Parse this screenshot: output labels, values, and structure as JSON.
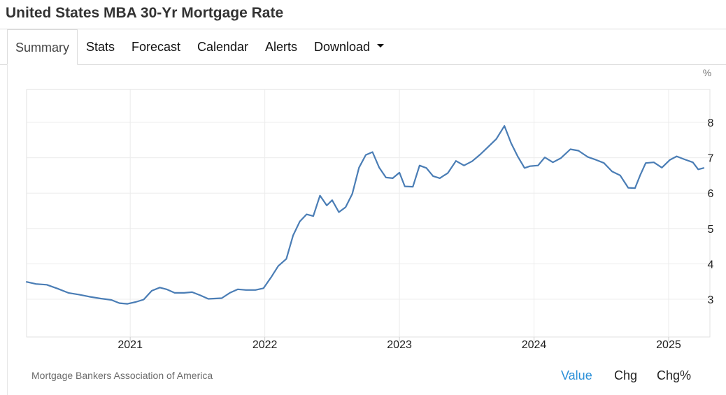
{
  "page": {
    "title": "United States MBA 30-Yr Mortgage Rate"
  },
  "tabs": [
    {
      "label": "Summary",
      "active": true
    },
    {
      "label": "Stats"
    },
    {
      "label": "Forecast"
    },
    {
      "label": "Calendar"
    },
    {
      "label": "Alerts"
    },
    {
      "label": "Download",
      "has_dropdown": true
    }
  ],
  "footer": {
    "source": "Mortgage Bankers Association of America",
    "options": [
      {
        "label": "Value",
        "selected": true
      },
      {
        "label": "Chg"
      },
      {
        "label": "Chg%"
      }
    ]
  },
  "colors": {
    "line": "#4a7db5",
    "selected_option": "#2a8fd8",
    "grid": "#ececec"
  },
  "chart_data": {
    "type": "line",
    "title": "",
    "xlabel": "",
    "ylabel": "%",
    "x_ticks": [
      "2021",
      "2022",
      "2023",
      "2024",
      "2025"
    ],
    "y_ticks": [
      3,
      4,
      5,
      6,
      7,
      8
    ],
    "ylim": [
      2,
      9
    ],
    "xlim": [
      2020.23,
      2025.26
    ],
    "grid": true,
    "legend": "none",
    "series": [
      {
        "values": [
          [
            2020.23,
            3.49
          ],
          [
            2020.3,
            3.43
          ],
          [
            2020.38,
            3.41
          ],
          [
            2020.46,
            3.3
          ],
          [
            2020.54,
            3.18
          ],
          [
            2020.62,
            3.13
          ],
          [
            2020.7,
            3.07
          ],
          [
            2020.78,
            3.02
          ],
          [
            2020.86,
            2.98
          ],
          [
            2020.92,
            2.89
          ],
          [
            2020.98,
            2.87
          ],
          [
            2021.04,
            2.92
          ],
          [
            2021.1,
            2.99
          ],
          [
            2021.16,
            3.24
          ],
          [
            2021.22,
            3.33
          ],
          [
            2021.27,
            3.28
          ],
          [
            2021.33,
            3.18
          ],
          [
            2021.4,
            3.18
          ],
          [
            2021.46,
            3.2
          ],
          [
            2021.52,
            3.11
          ],
          [
            2021.58,
            3.01
          ],
          [
            2021.63,
            3.02
          ],
          [
            2021.68,
            3.03
          ],
          [
            2021.74,
            3.18
          ],
          [
            2021.8,
            3.28
          ],
          [
            2021.86,
            3.26
          ],
          [
            2021.93,
            3.26
          ],
          [
            2021.99,
            3.31
          ],
          [
            2022.05,
            3.64
          ],
          [
            2022.1,
            3.94
          ],
          [
            2022.16,
            4.14
          ],
          [
            2022.21,
            4.8
          ],
          [
            2022.26,
            5.2
          ],
          [
            2022.31,
            5.4
          ],
          [
            2022.36,
            5.35
          ],
          [
            2022.41,
            5.93
          ],
          [
            2022.46,
            5.65
          ],
          [
            2022.5,
            5.8
          ],
          [
            2022.55,
            5.46
          ],
          [
            2022.6,
            5.6
          ],
          [
            2022.65,
            5.98
          ],
          [
            2022.7,
            6.72
          ],
          [
            2022.75,
            7.08
          ],
          [
            2022.8,
            7.16
          ],
          [
            2022.85,
            6.72
          ],
          [
            2022.9,
            6.44
          ],
          [
            2022.95,
            6.42
          ],
          [
            2023.0,
            6.58
          ],
          [
            2023.04,
            6.19
          ],
          [
            2023.1,
            6.18
          ],
          [
            2023.15,
            6.78
          ],
          [
            2023.2,
            6.71
          ],
          [
            2023.25,
            6.48
          ],
          [
            2023.3,
            6.42
          ],
          [
            2023.36,
            6.57
          ],
          [
            2023.42,
            6.91
          ],
          [
            2023.48,
            6.78
          ],
          [
            2023.54,
            6.9
          ],
          [
            2023.6,
            7.09
          ],
          [
            2023.66,
            7.31
          ],
          [
            2023.72,
            7.53
          ],
          [
            2023.78,
            7.9
          ],
          [
            2023.83,
            7.41
          ],
          [
            2023.88,
            7.03
          ],
          [
            2023.93,
            6.71
          ],
          [
            2023.97,
            6.76
          ],
          [
            2024.03,
            6.78
          ],
          [
            2024.08,
            7.01
          ],
          [
            2024.14,
            6.87
          ],
          [
            2024.2,
            6.99
          ],
          [
            2024.27,
            7.24
          ],
          [
            2024.33,
            7.2
          ],
          [
            2024.4,
            7.02
          ],
          [
            2024.46,
            6.94
          ],
          [
            2024.52,
            6.85
          ],
          [
            2024.58,
            6.61
          ],
          [
            2024.64,
            6.5
          ],
          [
            2024.7,
            6.15
          ],
          [
            2024.75,
            6.14
          ],
          [
            2024.79,
            6.52
          ],
          [
            2024.83,
            6.85
          ],
          [
            2024.89,
            6.87
          ],
          [
            2024.95,
            6.72
          ],
          [
            2025.01,
            6.94
          ],
          [
            2025.06,
            7.04
          ],
          [
            2025.12,
            6.95
          ],
          [
            2025.18,
            6.87
          ],
          [
            2025.22,
            6.67
          ],
          [
            2025.26,
            6.71
          ]
        ]
      }
    ]
  }
}
